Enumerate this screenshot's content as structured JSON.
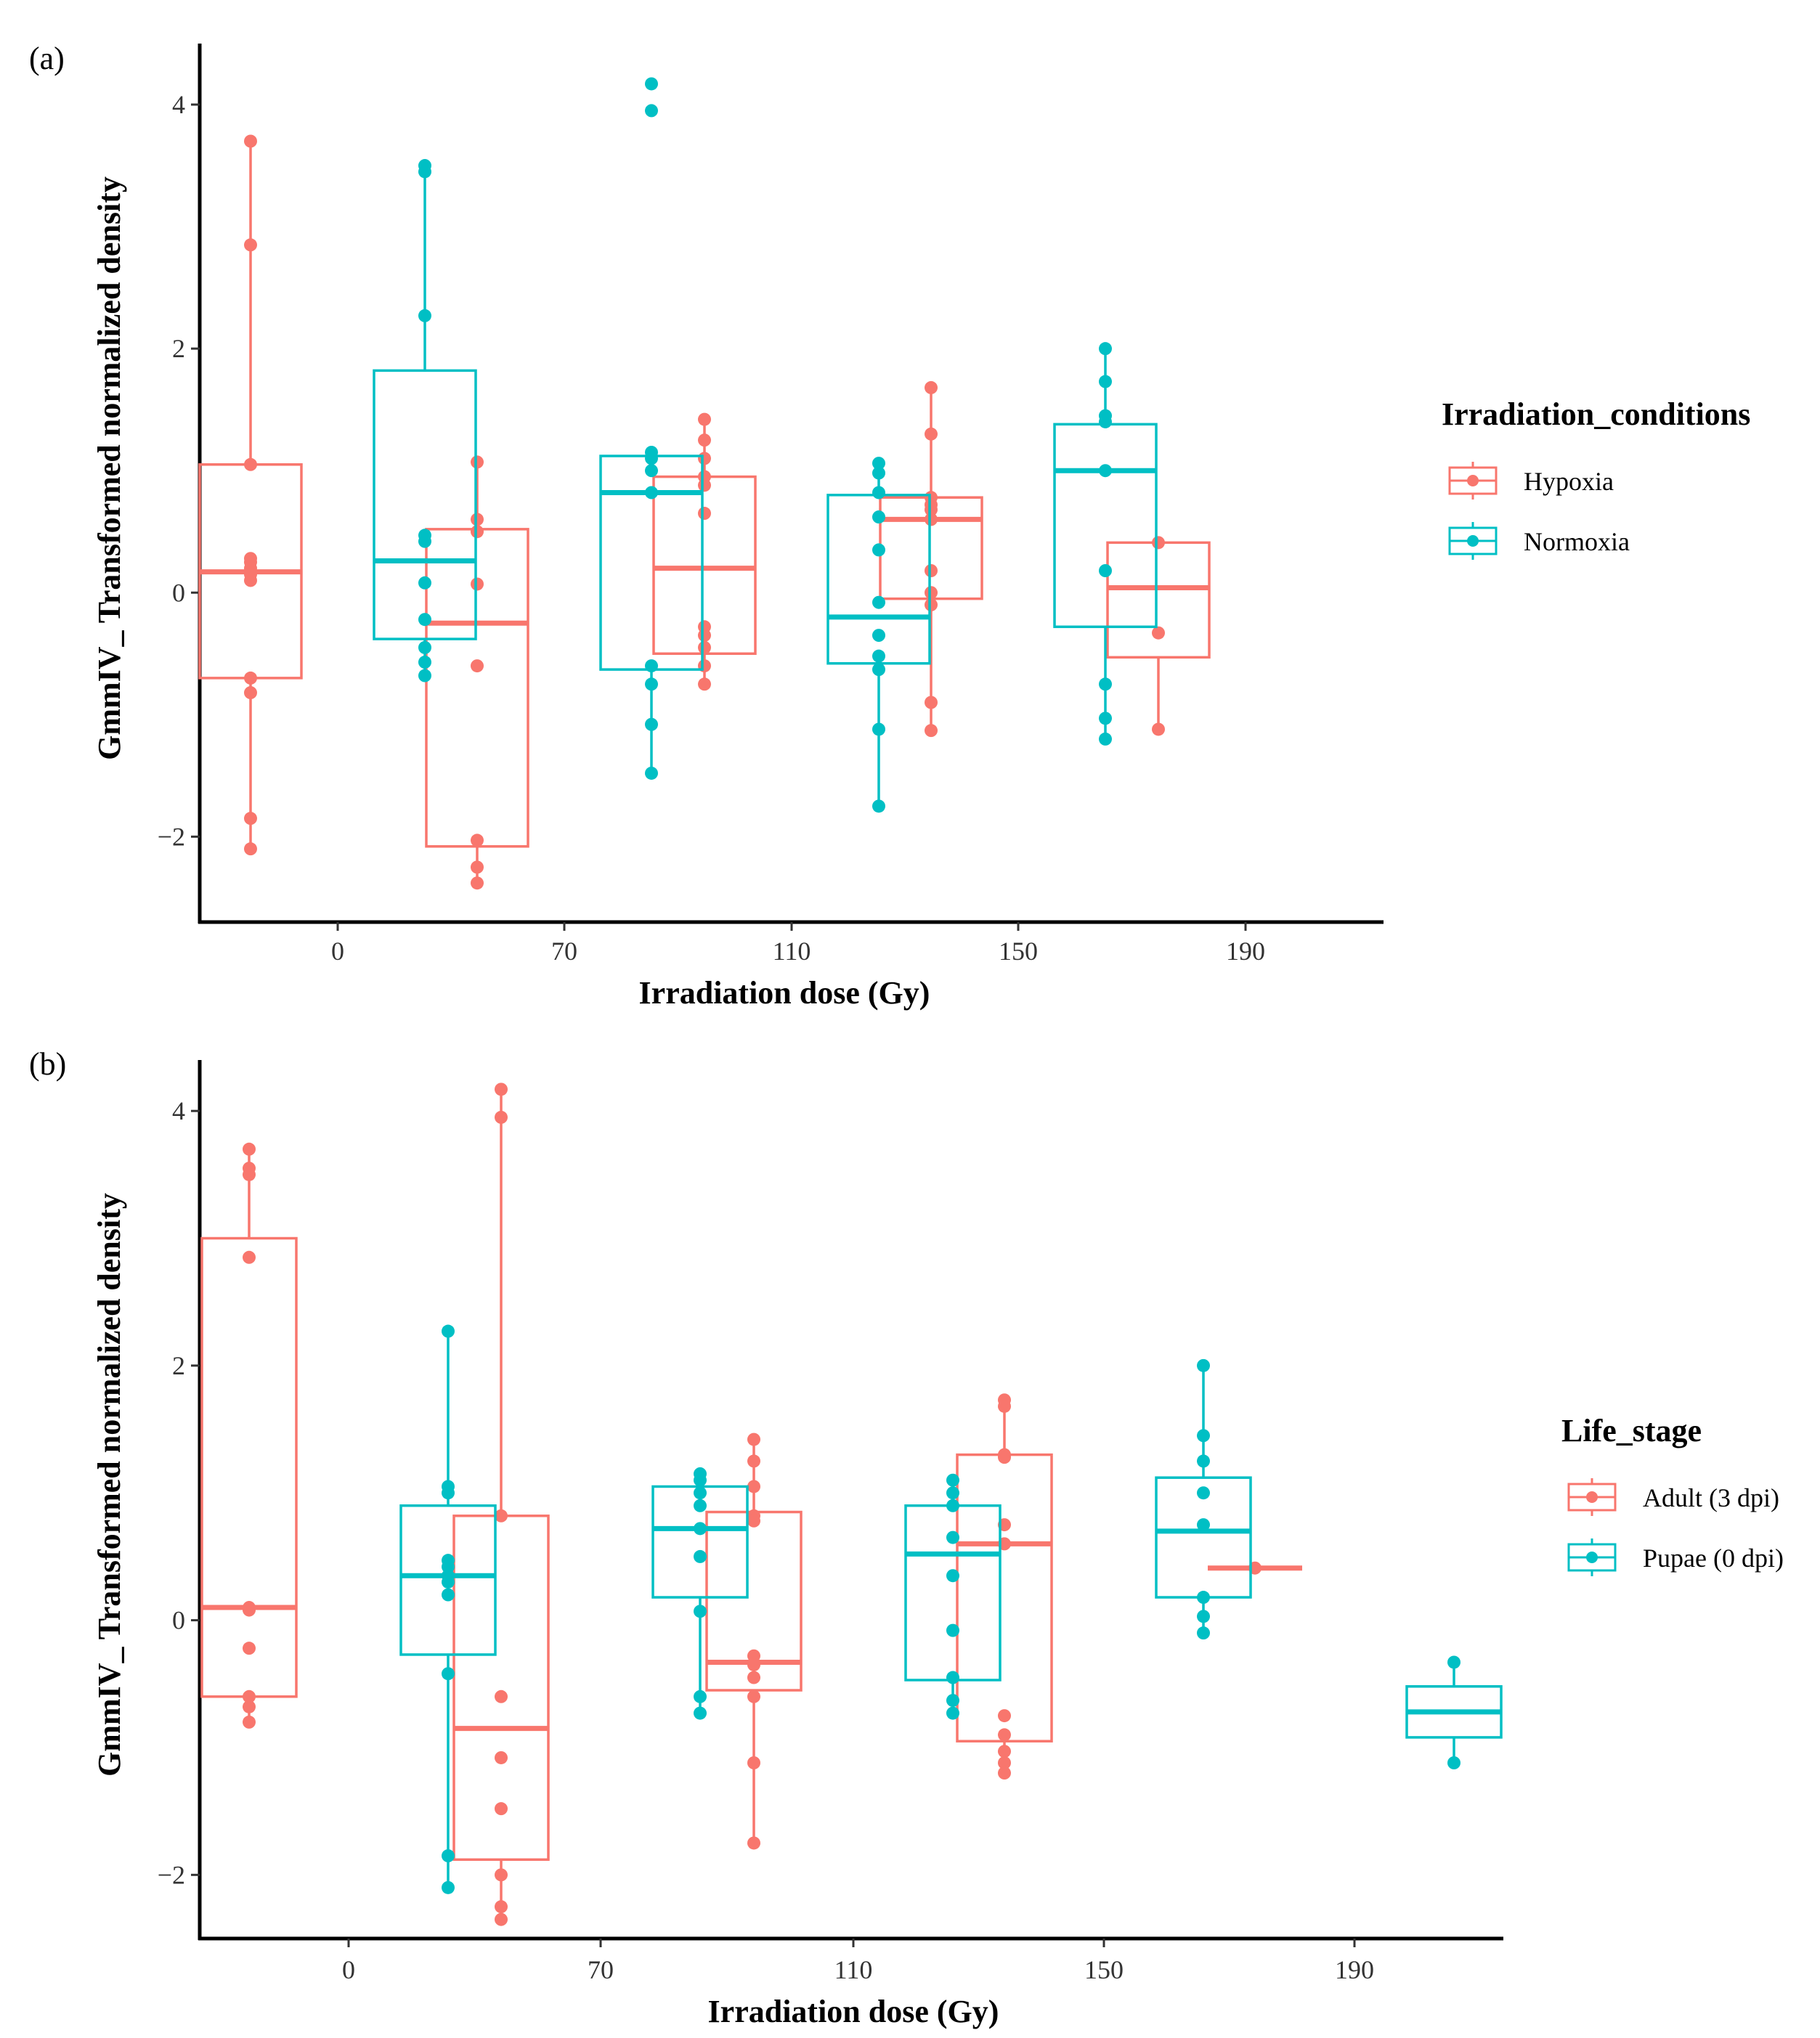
{
  "colors": {
    "series_a": "#F8766D",
    "series_b": "#00BFC4"
  },
  "chart_data": [
    {
      "panel": "(a)",
      "type": "boxplot",
      "xlabel": "Irradiation dose (Gy)",
      "ylabel": "GmmIV_ Transformed normalized density",
      "categories": [
        "0",
        "70",
        "110",
        "150",
        "190"
      ],
      "yticks": [
        -2,
        0,
        2,
        4
      ],
      "ylim": [
        -2.7,
        4.5
      ],
      "legend_title": "Irradiation_conditions",
      "series": [
        {
          "name": "Hypoxia",
          "boxes": [
            {
              "category": "0",
              "q1": -0.7,
              "median": 0.17,
              "q3": 1.05,
              "whisker_low": -2.1,
              "whisker_high": 3.7,
              "points": [
                3.7,
                2.85,
                1.05,
                0.28,
                0.25,
                0.2,
                0.15,
                0.1,
                -0.7,
                -0.82,
                -1.85,
                -2.1
              ]
            },
            {
              "category": "70",
              "q1": -2.08,
              "median": -0.25,
              "q3": 0.52,
              "whisker_low": -2.38,
              "whisker_high": 1.07,
              "points": [
                1.07,
                0.6,
                0.5,
                0.07,
                -0.6,
                -2.03,
                -2.25,
                -2.38
              ]
            },
            {
              "category": "110",
              "q1": -0.5,
              "median": 0.2,
              "q3": 0.95,
              "whisker_low": -0.75,
              "whisker_high": 1.42,
              "points": [
                1.42,
                1.25,
                1.1,
                0.95,
                0.88,
                0.65,
                -0.28,
                -0.35,
                -0.45,
                -0.6,
                -0.75
              ]
            },
            {
              "category": "150",
              "q1": -0.05,
              "median": 0.6,
              "q3": 0.78,
              "whisker_low": -1.13,
              "whisker_high": 1.68,
              "points": [
                1.68,
                1.3,
                0.78,
                0.72,
                0.68,
                0.6,
                0.18,
                0.0,
                -0.1,
                -0.9,
                -1.13
              ]
            },
            {
              "category": "190",
              "q1": -0.53,
              "median": 0.04,
              "q3": 0.41,
              "whisker_low": -1.12,
              "whisker_high": 0.41,
              "points": [
                0.41,
                -0.33,
                -1.12
              ]
            }
          ]
        },
        {
          "name": "Normoxia",
          "boxes": [
            {
              "category": "0",
              "q1": -0.38,
              "median": 0.26,
              "q3": 1.82,
              "whisker_low": -0.68,
              "whisker_high": 3.5,
              "points": [
                3.5,
                3.45,
                2.27,
                0.47,
                0.42,
                0.08,
                -0.22,
                -0.45,
                -0.57,
                -0.68
              ]
            },
            {
              "category": "70",
              "q1": -0.63,
              "median": 0.82,
              "q3": 1.12,
              "whisker_low": -1.48,
              "whisker_high": 1.12,
              "points": [
                4.17,
                3.95,
                1.15,
                1.1,
                1.0,
                0.82,
                -0.6,
                -0.75,
                -1.08,
                -1.48
              ]
            },
            {
              "category": "110",
              "q1": -0.58,
              "median": -0.2,
              "q3": 0.8,
              "whisker_low": -1.75,
              "whisker_high": 1.06,
              "points": [
                1.06,
                0.98,
                0.82,
                0.62,
                0.35,
                -0.08,
                -0.35,
                -0.52,
                -0.63,
                -1.12,
                -1.75
              ]
            },
            {
              "category": "150",
              "q1": -0.28,
              "median": 1.0,
              "q3": 1.38,
              "whisker_low": -1.2,
              "whisker_high": 2.0,
              "points": [
                2.0,
                1.73,
                1.45,
                1.4,
                1.0,
                0.18,
                -0.75,
                -1.03,
                -1.2
              ]
            }
          ]
        }
      ]
    },
    {
      "panel": "(b)",
      "type": "boxplot",
      "xlabel": "Irradiation dose (Gy)",
      "ylabel": "GmmIV_ Transformed normalized density",
      "categories": [
        "0",
        "70",
        "110",
        "150",
        "190"
      ],
      "yticks": [
        -2,
        0,
        2,
        4
      ],
      "ylim": [
        -2.5,
        4.4
      ],
      "legend_title": "Life_stage",
      "series": [
        {
          "name": "Adult (3 dpi)",
          "boxes": [
            {
              "category": "0",
              "q1": -0.6,
              "median": 0.1,
              "q3": 3.0,
              "whisker_low": -0.8,
              "whisker_high": 3.7,
              "points": [
                3.7,
                3.55,
                3.5,
                2.85,
                0.1,
                0.08,
                -0.22,
                -0.6,
                -0.68,
                -0.8
              ]
            },
            {
              "category": "70",
              "q1": -1.88,
              "median": -0.85,
              "q3": 0.82,
              "whisker_low": -2.35,
              "whisker_high": 4.17,
              "points": [
                4.17,
                3.95,
                0.82,
                -0.6,
                -1.08,
                -1.48,
                -2.0,
                -2.25,
                -2.35
              ]
            },
            {
              "category": "110",
              "q1": -0.55,
              "median": -0.33,
              "q3": 0.85,
              "whisker_low": -1.75,
              "whisker_high": 1.42,
              "points": [
                1.42,
                1.25,
                1.05,
                0.82,
                0.78,
                -0.28,
                -0.35,
                -0.45,
                -0.6,
                -1.12,
                -1.75
              ]
            },
            {
              "category": "150",
              "q1": -0.95,
              "median": 0.6,
              "q3": 1.3,
              "whisker_low": -1.2,
              "whisker_high": 1.73,
              "points": [
                1.73,
                1.68,
                1.3,
                1.28,
                0.75,
                0.6,
                -0.75,
                -0.9,
                -1.03,
                -1.12,
                -1.2
              ]
            },
            {
              "category": "190",
              "q1": 0.41,
              "median": 0.41,
              "q3": 0.41,
              "whisker_low": 0.41,
              "whisker_high": 0.41,
              "points": [
                0.41
              ]
            }
          ]
        },
        {
          "name": "Pupae (0 dpi)",
          "boxes": [
            {
              "category": "0",
              "q1": -0.27,
              "median": 0.35,
              "q3": 0.9,
              "whisker_low": -2.1,
              "whisker_high": 2.27,
              "points": [
                2.27,
                1.05,
                1.0,
                0.47,
                0.42,
                0.35,
                0.3,
                0.2,
                -0.42,
                -1.85,
                -2.1
              ]
            },
            {
              "category": "70",
              "q1": 0.18,
              "median": 0.72,
              "q3": 1.05,
              "whisker_low": -0.73,
              "whisker_high": 1.15,
              "points": [
                1.15,
                1.1,
                1.0,
                0.9,
                0.72,
                0.5,
                0.07,
                -0.6,
                -0.73
              ]
            },
            {
              "category": "110",
              "q1": -0.47,
              "median": 0.52,
              "q3": 0.9,
              "whisker_low": -0.73,
              "whisker_high": 1.1,
              "points": [
                1.1,
                1.0,
                0.9,
                0.65,
                0.35,
                -0.08,
                -0.45,
                -0.63,
                -0.73
              ]
            },
            {
              "category": "150",
              "q1": 0.18,
              "median": 0.7,
              "q3": 1.12,
              "whisker_low": -0.1,
              "whisker_high": 2.0,
              "points": [
                2.0,
                1.45,
                1.25,
                1.0,
                0.75,
                0.18,
                0.03,
                -0.1
              ]
            },
            {
              "category": "190",
              "q1": -0.92,
              "median": -0.72,
              "q3": -0.52,
              "whisker_low": -1.12,
              "whisker_high": -0.33,
              "points": [
                -0.33,
                -1.12
              ]
            }
          ]
        }
      ]
    }
  ]
}
